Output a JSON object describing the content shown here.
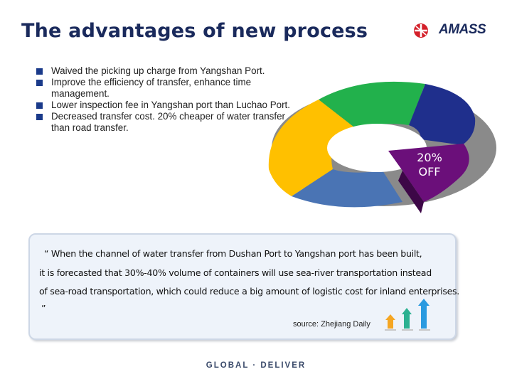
{
  "header": {
    "title": "The advantages of new process",
    "logo_text": "AMASS"
  },
  "bullets": [
    "Waived the picking up charge from Yangshan Port.",
    "Improve the efficiency of transfer, enhance time management.",
    "Lower inspection fee in Yangshan port than Luchao Port.",
    "Decreased transfer cost. 20% cheaper of water transfer than road transfer."
  ],
  "graphic": {
    "off_line1": "20%",
    "off_line2": "OFF",
    "colors": {
      "green": "#22b14c",
      "navy": "#1f2f8c",
      "yellow": "#ffc000",
      "blue": "#4a74b4",
      "purple": "#6b0f7a"
    }
  },
  "quote": {
    "line1": "“ When the  channel of water transfer from Dushan Port to Yangshan port has been built,",
    "line2": "it is forecasted that 30%-40% volume of containers will use sea-river transportation instead",
    "line3": "of sea-road transportation, which could reduce a big amount of logistic cost for inland enterprises.",
    "line4": "”",
    "source": "source: Zhejiang Daily"
  },
  "footer": {
    "tagline": "GLOBAL · DELIVER"
  }
}
